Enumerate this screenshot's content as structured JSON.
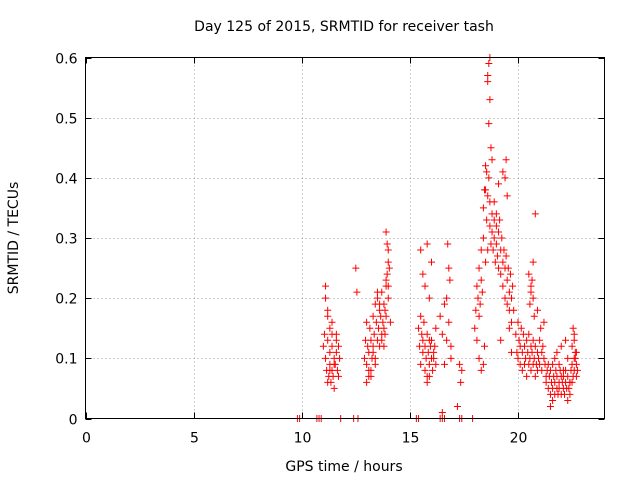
{
  "chart_data": {
    "type": "scatter",
    "title": "Day 125 of 2015, SRMTID for receiver tash",
    "xlabel": "GPS time / hours",
    "ylabel": "SRMTID / TECUs",
    "xlim": [
      0,
      24
    ],
    "ylim": [
      0,
      0.6
    ],
    "xticks": [
      "0",
      "5",
      "10",
      "15",
      "20"
    ],
    "xtick_values": [
      0,
      5,
      10,
      15,
      20
    ],
    "yticks": [
      "0",
      "0.1",
      "0.2",
      "0.3",
      "0.4",
      "0.5",
      "0.6"
    ],
    "ytick_values": [
      0,
      0.1,
      0.2,
      0.3,
      0.4,
      0.5,
      0.6
    ],
    "grid": true,
    "marker": "+",
    "color": "#ff0000",
    "series": [
      {
        "name": "SRMTID",
        "x": [
          9.8,
          9.9,
          10.7,
          10.8,
          10.9,
          11.8,
          12.4,
          12.6,
          15.3,
          15.4,
          16.4,
          16.5,
          16.6,
          17.3,
          17.4,
          17.9,
          11.0,
          11.05,
          11.1,
          11.1,
          11.15,
          11.2,
          11.2,
          11.25,
          11.3,
          11.3,
          11.35,
          11.4,
          11.4,
          11.45,
          11.5,
          11.5,
          11.55,
          11.6,
          11.6,
          11.65,
          11.7,
          11.7,
          11.75,
          11.1,
          11.2,
          11.3,
          11.4,
          11.5,
          11.6,
          11.2,
          11.3,
          11.4,
          12.5,
          12.55,
          12.9,
          12.95,
          13.0,
          13.0,
          13.05,
          13.1,
          13.1,
          13.15,
          13.2,
          13.2,
          13.25,
          13.3,
          13.3,
          13.35,
          13.4,
          13.4,
          13.45,
          13.5,
          13.5,
          13.55,
          13.6,
          13.6,
          13.65,
          13.7,
          13.7,
          13.75,
          13.8,
          13.8,
          13.85,
          13.9,
          13.9,
          13.95,
          14.0,
          14.0,
          14.05,
          14.1,
          13.0,
          13.1,
          13.2,
          13.3,
          13.4,
          13.5,
          13.6,
          13.7,
          13.8,
          13.9,
          14.0,
          13.95,
          13.9,
          14.0,
          13.85,
          15.4,
          15.45,
          15.5,
          15.5,
          15.55,
          15.6,
          15.6,
          15.65,
          15.7,
          15.7,
          15.75,
          15.8,
          15.8,
          15.85,
          15.9,
          15.9,
          15.95,
          16.0,
          16.0,
          16.05,
          16.1,
          16.1,
          16.15,
          16.2,
          15.5,
          15.6,
          15.7,
          15.8,
          15.9,
          16.0,
          15.8,
          15.9,
          16.2,
          16.4,
          16.5,
          16.6,
          16.7,
          16.8,
          16.9,
          16.7,
          16.75,
          16.8,
          16.85,
          16.5,
          16.6,
          16.9,
          17.3,
          17.35,
          17.4,
          17.2,
          18.0,
          18.05,
          18.1,
          18.1,
          18.15,
          18.2,
          18.2,
          18.25,
          18.3,
          18.3,
          18.35,
          18.4,
          18.4,
          18.45,
          18.5,
          18.5,
          18.55,
          18.6,
          18.6,
          18.65,
          18.7,
          18.7,
          18.75,
          18.8,
          18.8,
          18.85,
          18.9,
          18.9,
          18.95,
          19.0,
          19.0,
          19.05,
          19.1,
          19.1,
          19.15,
          19.2,
          19.2,
          19.25,
          19.3,
          19.3,
          19.35,
          19.4,
          19.4,
          19.45,
          19.5,
          19.5,
          19.55,
          19.6,
          19.6,
          19.65,
          19.7,
          19.7,
          19.75,
          19.8,
          18.6,
          18.65,
          18.7,
          18.6,
          18.7,
          18.65,
          18.75,
          18.8,
          19.3,
          19.4,
          19.5,
          19.45,
          18.5,
          18.55,
          18.9,
          19.0,
          19.1,
          19.6,
          19.7,
          19.2,
          18.4,
          18.45,
          18.2,
          18.3,
          19.9,
          19.95,
          20.0,
          20.0,
          20.05,
          20.1,
          20.1,
          20.15,
          20.2,
          20.2,
          20.25,
          20.3,
          20.3,
          20.35,
          20.4,
          20.4,
          20.45,
          20.5,
          20.5,
          20.55,
          20.6,
          20.6,
          20.65,
          20.7,
          20.7,
          20.75,
          20.8,
          20.8,
          20.85,
          20.9,
          20.9,
          20.95,
          21.0,
          21.0,
          21.05,
          21.1,
          21.1,
          21.15,
          21.2,
          21.2,
          21.25,
          21.3,
          20.5,
          20.6,
          20.7,
          20.8,
          20.9,
          20.6,
          20.7,
          20.55,
          20.65,
          20.75,
          21.3,
          21.35,
          21.4,
          21.4,
          21.45,
          21.5,
          21.5,
          21.55,
          21.6,
          21.6,
          21.65,
          21.7,
          21.7,
          21.75,
          21.8,
          21.8,
          21.85,
          21.9,
          21.9,
          21.95,
          22.0,
          22.0,
          22.05,
          22.1,
          22.1,
          22.15,
          22.2,
          22.2,
          22.25,
          22.3,
          22.3,
          22.35,
          22.4,
          22.4,
          22.45,
          22.5,
          22.5,
          22.55,
          22.6,
          22.6,
          22.65,
          22.7,
          22.7,
          22.75,
          21.5,
          21.6,
          21.7,
          21.8,
          21.9,
          22.0,
          22.1,
          22.2,
          22.3,
          22.4,
          22.5,
          22.6,
          22.7,
          22.55,
          22.6,
          22.65
        ],
        "y": [
          0,
          0,
          0,
          0,
          0,
          0,
          0,
          0,
          0,
          0,
          0,
          0,
          0,
          0,
          0,
          0,
          0.12,
          0.14,
          0.1,
          0.22,
          0.08,
          0.13,
          0.18,
          0.07,
          0.11,
          0.09,
          0.06,
          0.08,
          0.14,
          0.07,
          0.1,
          0.05,
          0.09,
          0.13,
          0.11,
          0.08,
          0.07,
          0.12,
          0.1,
          0.2,
          0.17,
          0.15,
          0.12,
          0.09,
          0.14,
          0.06,
          0.08,
          0.16,
          0.25,
          0.21,
          0.1,
          0.13,
          0.09,
          0.16,
          0.12,
          0.08,
          0.11,
          0.15,
          0.07,
          0.13,
          0.1,
          0.17,
          0.12,
          0.14,
          0.09,
          0.19,
          0.16,
          0.13,
          0.2,
          0.15,
          0.18,
          0.12,
          0.17,
          0.14,
          0.21,
          0.16,
          0.19,
          0.15,
          0.18,
          0.22,
          0.17,
          0.24,
          0.2,
          0.28,
          0.25,
          0.16,
          0.06,
          0.07,
          0.08,
          0.11,
          0.1,
          0.21,
          0.19,
          0.13,
          0.12,
          0.31,
          0.26,
          0.29,
          0.23,
          0.22,
          0.14,
          0.15,
          0.12,
          0.17,
          0.09,
          0.14,
          0.11,
          0.13,
          0.16,
          0.08,
          0.12,
          0.1,
          0.14,
          0.07,
          0.11,
          0.13,
          0.09,
          0.12,
          0.1,
          0.13,
          0.08,
          0.11,
          0.1,
          0.12,
          0.09,
          0.28,
          0.24,
          0.22,
          0.29,
          0.2,
          0.26,
          0.06,
          0.07,
          0.15,
          0.17,
          0.14,
          0.19,
          0.13,
          0.16,
          0.12,
          0.2,
          0.29,
          0.25,
          0.23,
          0.01,
          0.09,
          0.1,
          0.09,
          0.06,
          0.08,
          0.02,
          0.15,
          0.18,
          0.22,
          0.13,
          0.2,
          0.17,
          0.25,
          0.19,
          0.23,
          0.28,
          0.21,
          0.35,
          0.3,
          0.38,
          0.26,
          0.42,
          0.33,
          0.37,
          0.28,
          0.4,
          0.32,
          0.36,
          0.29,
          0.34,
          0.31,
          0.28,
          0.33,
          0.3,
          0.26,
          0.32,
          0.29,
          0.27,
          0.31,
          0.25,
          0.33,
          0.28,
          0.24,
          0.3,
          0.26,
          0.22,
          0.28,
          0.25,
          0.2,
          0.27,
          0.23,
          0.19,
          0.25,
          0.21,
          0.18,
          0.24,
          0.2,
          0.16,
          0.22,
          0.18,
          0.57,
          0.59,
          0.6,
          0.56,
          0.53,
          0.49,
          0.45,
          0.43,
          0.41,
          0.4,
          0.37,
          0.43,
          0.38,
          0.41,
          0.36,
          0.34,
          0.39,
          0.15,
          0.11,
          0.13,
          0.09,
          0.12,
          0.1,
          0.08,
          0.14,
          0.11,
          0.16,
          0.1,
          0.13,
          0.09,
          0.12,
          0.15,
          0.08,
          0.11,
          0.14,
          0.09,
          0.12,
          0.1,
          0.07,
          0.13,
          0.11,
          0.09,
          0.14,
          0.1,
          0.12,
          0.08,
          0.11,
          0.09,
          0.13,
          0.1,
          0.07,
          0.12,
          0.09,
          0.11,
          0.08,
          0.1,
          0.13,
          0.09,
          0.15,
          0.11,
          0.08,
          0.12,
          0.1,
          0.16,
          0.09,
          0.07,
          0.24,
          0.22,
          0.2,
          0.34,
          0.18,
          0.21,
          0.26,
          0.19,
          0.23,
          0.17,
          0.06,
          0.08,
          0.05,
          0.09,
          0.07,
          0.04,
          0.08,
          0.06,
          0.05,
          0.09,
          0.07,
          0.04,
          0.06,
          0.08,
          0.05,
          0.07,
          0.04,
          0.06,
          0.05,
          0.08,
          0.07,
          0.04,
          0.06,
          0.05,
          0.07,
          0.04,
          0.08,
          0.06,
          0.05,
          0.03,
          0.07,
          0.05,
          0.06,
          0.04,
          0.08,
          0.06,
          0.09,
          0.07,
          0.1,
          0.08,
          0.11,
          0.09,
          0.07,
          0.08,
          0.02,
          0.03,
          0.1,
          0.11,
          0.09,
          0.12,
          0.08,
          0.13,
          0.1,
          0.06,
          0.12,
          0.14,
          0.11,
          0.15,
          0.13,
          0.1
        ]
      }
    ]
  }
}
